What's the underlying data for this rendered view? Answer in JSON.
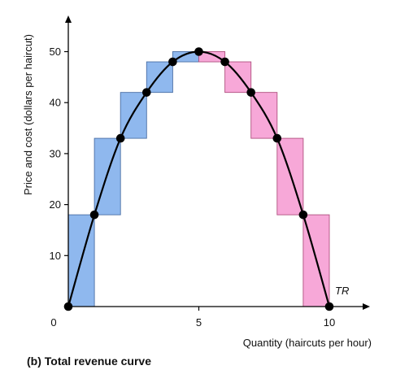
{
  "caption": "(b) Total revenue curve",
  "chart_data": {
    "type": "line",
    "xlabel": "Quantity (haircuts per hour)",
    "ylabel": "Price and cost (dollars per haircut)",
    "xlim": [
      0,
      11
    ],
    "ylim": [
      0,
      57
    ],
    "x_ticks": [
      0,
      5,
      10
    ],
    "y_ticks": [
      10,
      20,
      30,
      40,
      50
    ],
    "grid": false,
    "curve_label": "TR",
    "series": [
      {
        "name": "TR",
        "x": [
          0,
          1,
          2,
          3,
          4,
          5,
          6,
          7,
          8,
          9,
          10
        ],
        "y": [
          0,
          18,
          33,
          42,
          48,
          50,
          48,
          42,
          33,
          18,
          0
        ]
      }
    ],
    "colors": {
      "curve": "#000000",
      "rising_bars": "#8fb8ee",
      "falling_bars": "#f7a8d8",
      "rising_border": "#4a6fa5",
      "falling_border": "#b0507f"
    }
  }
}
